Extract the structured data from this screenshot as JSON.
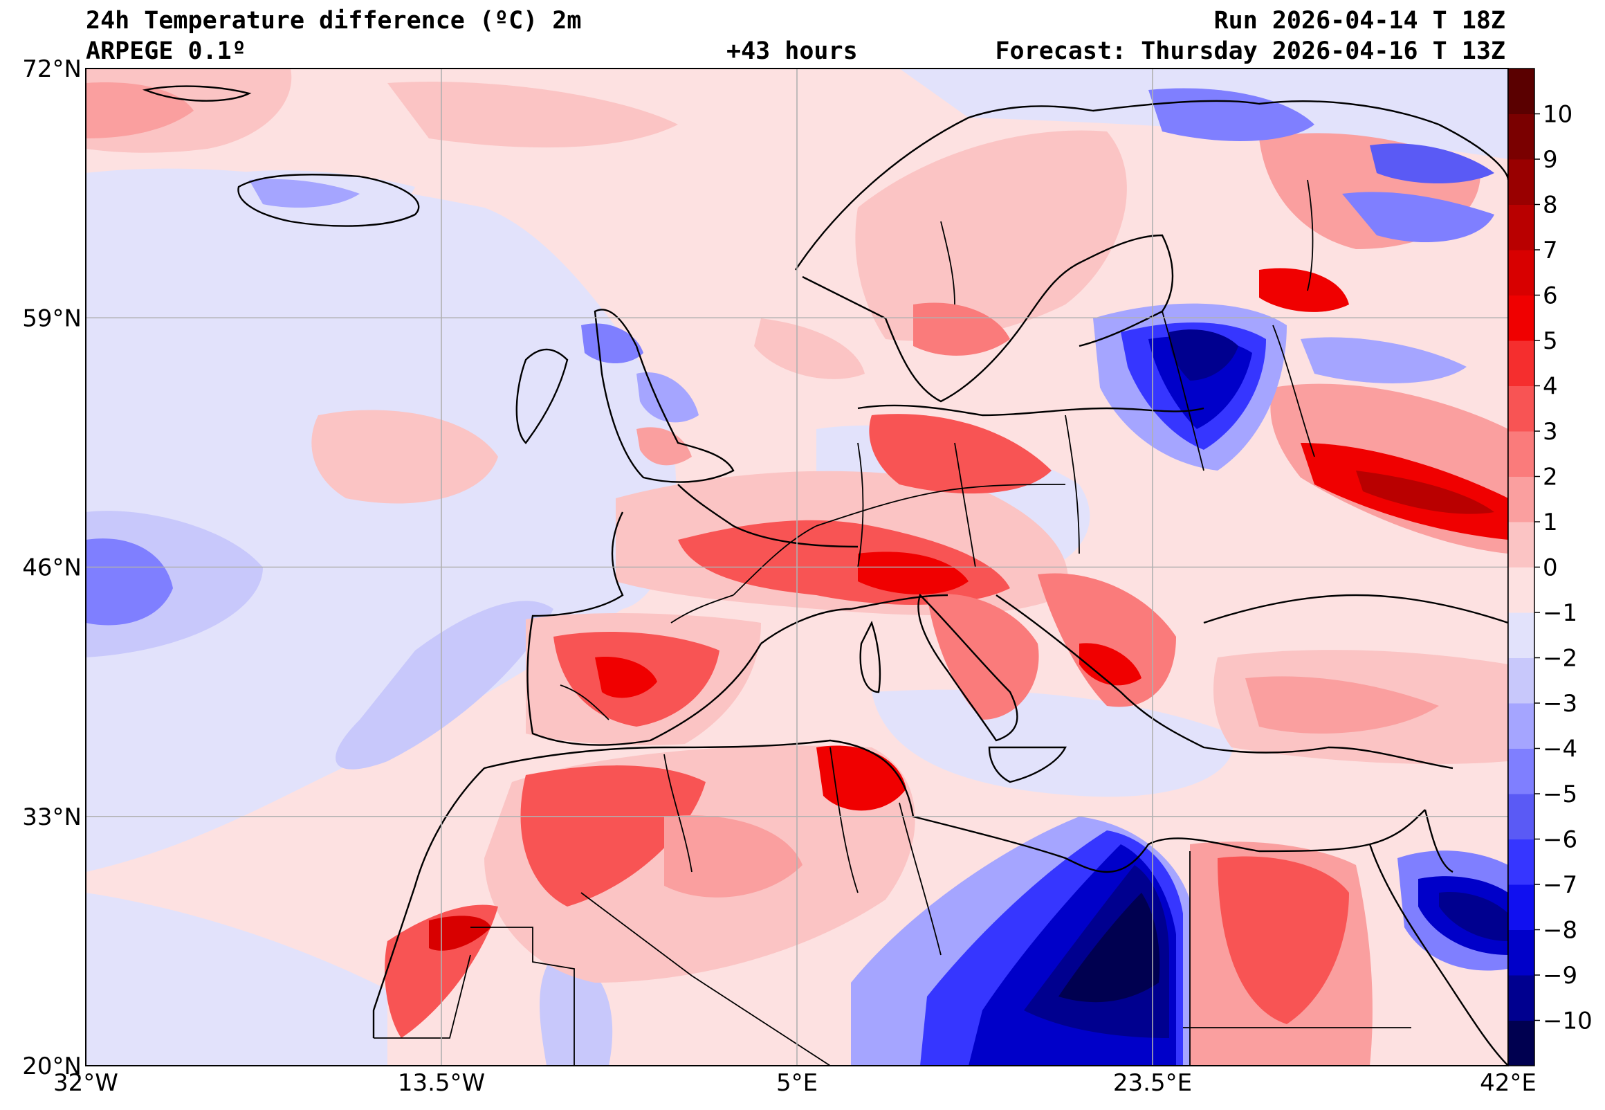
{
  "header": {
    "title": "24h Temperature difference (ºC) 2m",
    "model": "ARPEGE 0.1º",
    "lead": "+43 hours",
    "run": "Run 2026-04-14 T 18Z",
    "forecast": "Forecast: Thursday 2026-04-16 T 13Z"
  },
  "map": {
    "lon_range": [
      -32,
      42
    ],
    "lat_range": [
      20,
      72
    ],
    "lon_ticks": [
      {
        "value": -32,
        "label": "32°W"
      },
      {
        "value": -13.5,
        "label": "13.5°W"
      },
      {
        "value": 5,
        "label": "5°E"
      },
      {
        "value": 23.5,
        "label": "23.5°E"
      },
      {
        "value": 42,
        "label": "42°E"
      }
    ],
    "lat_ticks": [
      {
        "value": 72,
        "label": "72°N"
      },
      {
        "value": 59,
        "label": "59°N"
      },
      {
        "value": 46,
        "label": "46°N"
      },
      {
        "value": 33,
        "label": "33°N"
      },
      {
        "value": 20,
        "label": "20°N"
      }
    ],
    "grid": true,
    "colorbar": {
      "min": -11,
      "max": 11,
      "labels": [
        "10",
        "9",
        "8",
        "7",
        "6",
        "5",
        "4",
        "3",
        "2",
        "1",
        "0",
        "−1",
        "−2",
        "−3",
        "−4",
        "−5",
        "−6",
        "−7",
        "−8",
        "−9",
        "−10"
      ],
      "label_values": [
        10,
        9,
        8,
        7,
        6,
        5,
        4,
        3,
        2,
        1,
        0,
        -1,
        -2,
        -3,
        -4,
        -5,
        -6,
        -7,
        -8,
        -9,
        -10
      ],
      "colors": [
        "#000050",
        "#00008f",
        "#0000c9",
        "#1010f0",
        "#3636ff",
        "#5a5af5",
        "#7f7fff",
        "#a5a5ff",
        "#c8c8fb",
        "#e2e2fb",
        "#fde1e1",
        "#fbc4c4",
        "#fa9f9f",
        "#fa7b7b",
        "#f85454",
        "#f52e2e",
        "#f00000",
        "#d80000",
        "#b90000",
        "#990000",
        "#7a0000",
        "#5a0000"
      ]
    }
  }
}
